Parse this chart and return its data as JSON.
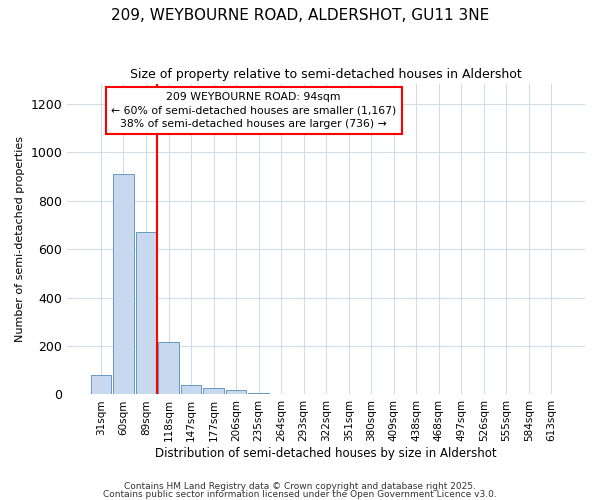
{
  "title": "209, WEYBOURNE ROAD, ALDERSHOT, GU11 3NE",
  "subtitle": "Size of property relative to semi-detached houses in Aldershot",
  "xlabel": "Distribution of semi-detached houses by size in Aldershot",
  "ylabel": "Number of semi-detached properties",
  "bar_color": "#c8d8ee",
  "bar_edge_color": "#6699bb",
  "background_color": "#ffffff",
  "grid_color": "#d0dce8",
  "categories": [
    "31sqm",
    "60sqm",
    "89sqm",
    "118sqm",
    "147sqm",
    "177sqm",
    "206sqm",
    "235sqm",
    "264sqm",
    "293sqm",
    "322sqm",
    "351sqm",
    "380sqm",
    "409sqm",
    "438sqm",
    "468sqm",
    "497sqm",
    "526sqm",
    "555sqm",
    "584sqm",
    "613sqm"
  ],
  "values": [
    80,
    910,
    670,
    215,
    40,
    25,
    20,
    5,
    0,
    0,
    0,
    0,
    0,
    0,
    0,
    0,
    0,
    0,
    0,
    0,
    0
  ],
  "ylim": [
    0,
    1280
  ],
  "yticks": [
    0,
    200,
    400,
    600,
    800,
    1000,
    1200
  ],
  "red_line_x": 2.5,
  "annotation_text": "209 WEYBOURNE ROAD: 94sqm\n← 60% of semi-detached houses are smaller (1,167)\n38% of semi-detached houses are larger (736) →",
  "footer1": "Contains HM Land Registry data © Crown copyright and database right 2025.",
  "footer2": "Contains public sector information licensed under the Open Government Licence v3.0."
}
